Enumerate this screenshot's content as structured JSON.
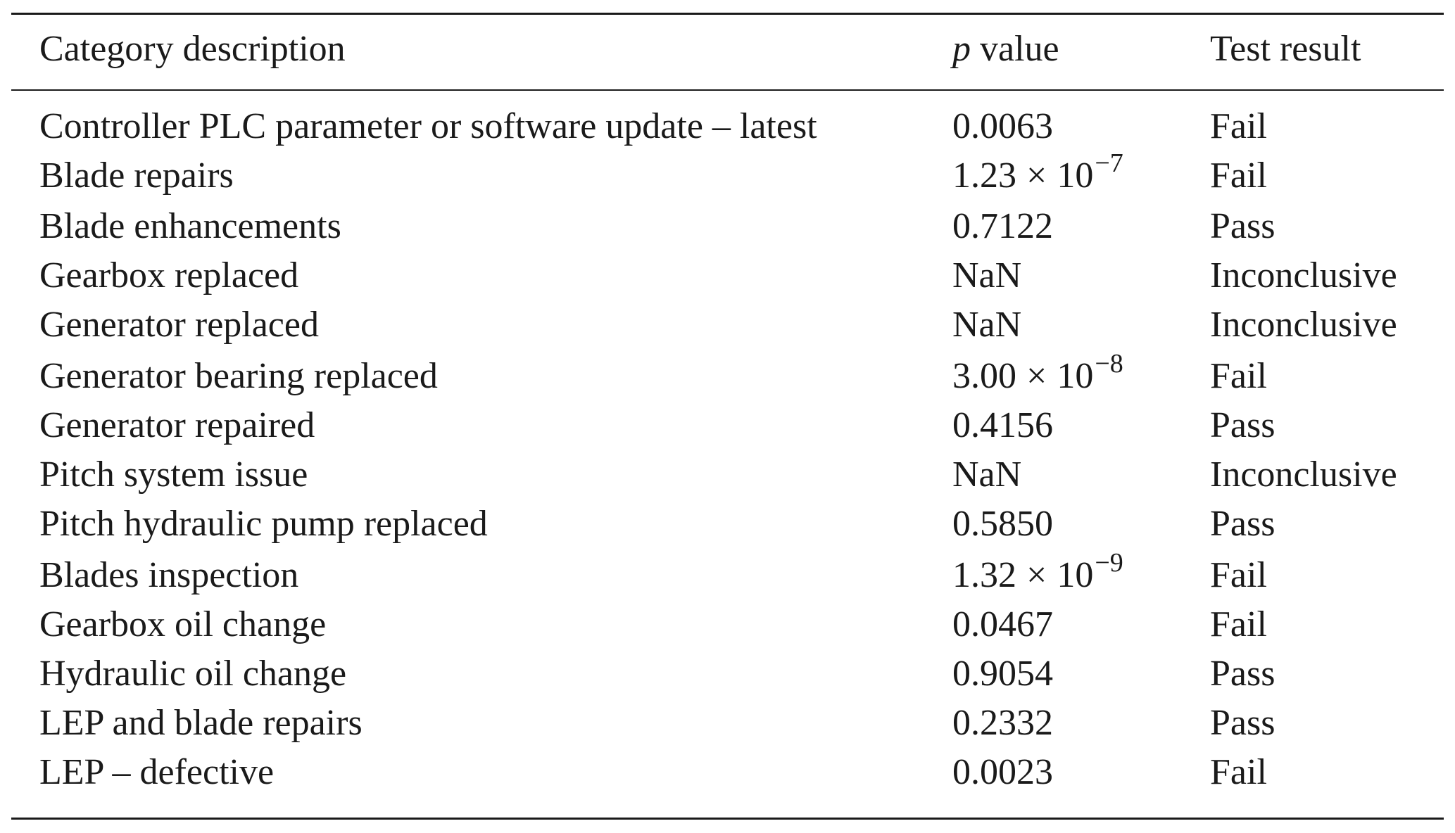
{
  "table": {
    "headers": {
      "category": "Category description",
      "p_italic": "p",
      "p_rest": " value",
      "result": "Test result"
    },
    "rows": [
      {
        "category": "Controller PLC parameter or software update – latest",
        "p": "0.0063",
        "result": "Fail"
      },
      {
        "category": "Blade repairs",
        "p_mantissa": "1.23",
        "p_times": "×",
        "p_base": "10",
        "p_exp": "−7",
        "result": "Fail"
      },
      {
        "category": "Blade enhancements",
        "p": "0.7122",
        "result": "Pass"
      },
      {
        "category": "Gearbox replaced",
        "p": "NaN",
        "result": "Inconclusive"
      },
      {
        "category": "Generator replaced",
        "p": "NaN",
        "result": "Inconclusive"
      },
      {
        "category": "Generator bearing replaced",
        "p_mantissa": "3.00",
        "p_times": "×",
        "p_base": "10",
        "p_exp": "−8",
        "result": "Fail"
      },
      {
        "category": "Generator repaired",
        "p": "0.4156",
        "result": "Pass"
      },
      {
        "category": "Pitch system issue",
        "p": "NaN",
        "result": "Inconclusive"
      },
      {
        "category": "Pitch hydraulic pump replaced",
        "p": "0.5850",
        "result": "Pass"
      },
      {
        "category": "Blades inspection",
        "p_mantissa": "1.32",
        "p_times": "×",
        "p_base": "10",
        "p_exp": "−9",
        "result": "Fail"
      },
      {
        "category": "Gearbox oil change",
        "p": "0.0467",
        "result": "Fail"
      },
      {
        "category": "Hydraulic oil change",
        "p": "0.9054",
        "result": "Pass"
      },
      {
        "category": "LEP and blade repairs",
        "p": "0.2332",
        "result": "Pass"
      },
      {
        "category": "LEP – defective",
        "p": "0.0023",
        "result": "Fail"
      }
    ]
  }
}
